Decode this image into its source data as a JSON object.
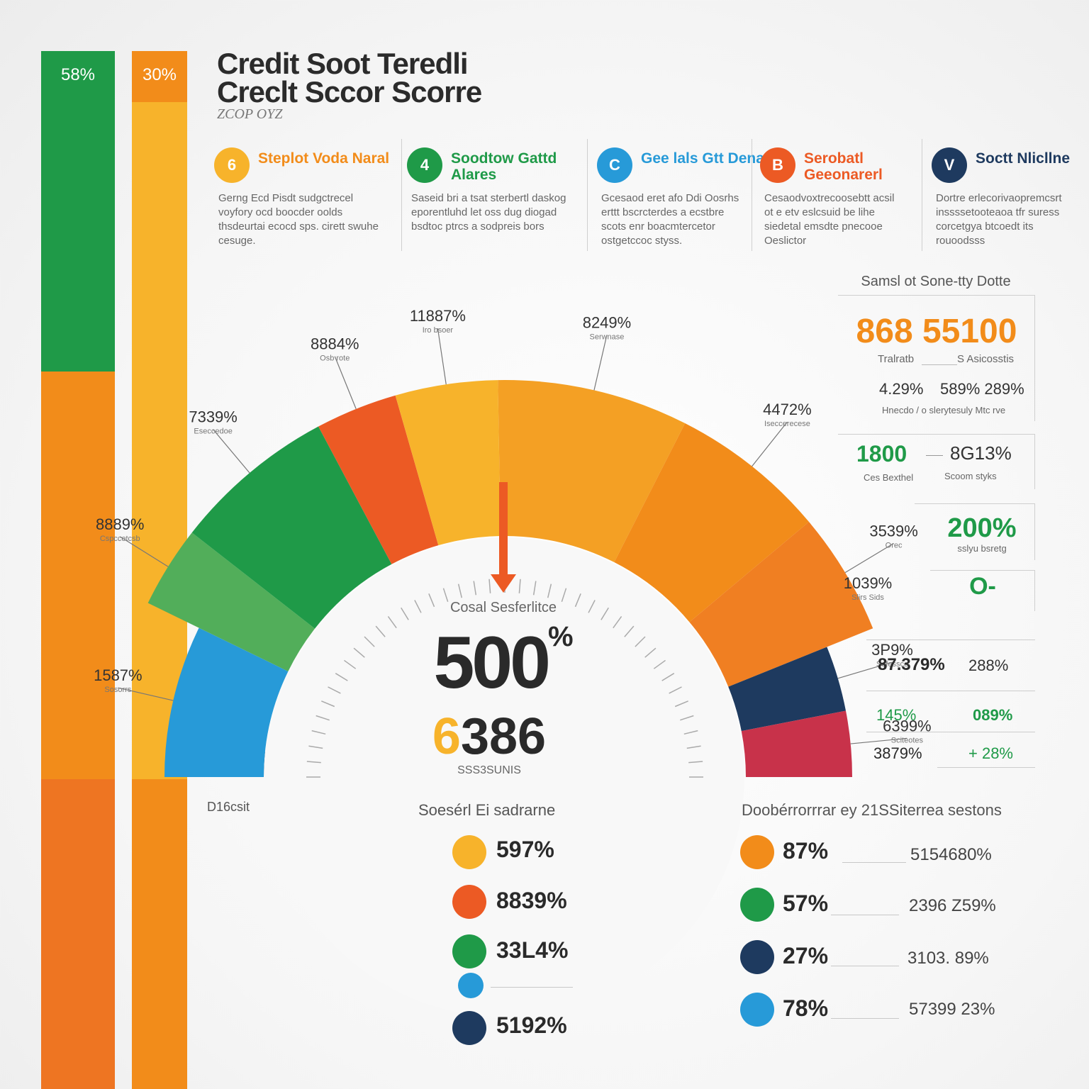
{
  "colors": {
    "green": "#1f9a48",
    "orange": "#f28c1a",
    "yellow": "#f7b32b",
    "red_orange": "#ec5a24",
    "blue": "#279ad8",
    "navy": "#1e3a5f",
    "crimson": "#c8324a",
    "light_green": "#52ae5a"
  },
  "bars": {
    "left_label": "58%",
    "right_label": "30%"
  },
  "title": {
    "line1": "Credit Soot Teredli",
    "line2": "Creclt Sccor Scorre",
    "sub": "ZCOP OYZ"
  },
  "cards": [
    {
      "badge": "6",
      "title": "Steplot Voda Naral",
      "desc": "Gerng Ecd Pisdt sudgctrecel voyfory ocd boocder oolds thsdeurtai ecocd sps. cirett swuhe cesuge.",
      "icon": "circle-6-icon"
    },
    {
      "badge": "4",
      "title": "Soodtow Gattd Alares",
      "desc": "Saseid bri a tsat sterbertl daskog eporentluhd let oss dug diogad bsdtoc ptrcs a sodpreis bors",
      "icon": "circle-4-icon"
    },
    {
      "badge": "C",
      "title": "Gee lals Gtt Dena",
      "desc": "Gcesaod eret afo Ddi Oosrhs erttt bscrcterdes a ecstbre scots enr boacmtercetor ostgetccoc styss.",
      "icon": "circle-c-icon"
    },
    {
      "badge": "B",
      "title": "Serobatl Geeonarerl",
      "desc": "Cesaodvoxtrecoosebtt acsil ot e etv eslcsuid be lihe siedetal emsdte pnecooe Oeslictor",
      "icon": "circle-b-icon"
    },
    {
      "badge": "V",
      "title": "Soctt Nlicllne",
      "desc": "Dortre erlecorivaopremcsrt inssssetooteaoa tfr suress corcetgya btcoedt its rouoodsss",
      "icon": "circle-check-icon"
    }
  ],
  "gauge": {
    "center_label": "Cosal Sesferlitce",
    "value": "500",
    "value_suffix": "%",
    "sub_value_accent": "6",
    "sub_value_rest": "386",
    "sub_caption": "SSS3SUNIS"
  },
  "chart_data": {
    "type": "gauge",
    "segments": [
      {
        "label": "1587%",
        "caption": "Sosorrs",
        "color": "#279ad8",
        "sweep": 26
      },
      {
        "label": "8889%",
        "caption": "Cspccetcsb",
        "color": "#52ae5a",
        "sweep": 12
      },
      {
        "label": "7339%",
        "caption": "Eseccedoe",
        "color": "#1f9a48",
        "sweep": 24
      },
      {
        "label": "8884%",
        "caption": "Osb rote",
        "color": "#ec5a24",
        "sweep": 12
      },
      {
        "label": "11887%",
        "caption": "Iro bsoer",
        "color": "#f7b32b",
        "sweep": 15
      },
      {
        "label": "8249%",
        "caption": "Serwnase",
        "color": "#f4a024",
        "sweep": 28
      },
      {
        "label": "4472%",
        "caption": "Iseccerecese",
        "color": "#f28c1a",
        "sweep": 23
      },
      {
        "label": "3539%",
        "caption": "Orec",
        "color": "#f07f22",
        "sweep": 18
      },
      {
        "label": "3P9%",
        "caption": "Sofessce",
        "color": "#1e3a5f",
        "sweep": 11
      },
      {
        "label": "6399%",
        "caption": "Sciteotes",
        "color": "#c8324a",
        "sweep": 11
      }
    ],
    "extra_labels": [
      {
        "label": "1039%",
        "caption": "Slirs Sids"
      }
    ],
    "left_caption": "D16csit"
  },
  "panel": {
    "title": "Samsl ot Sone-tty Dotte",
    "main_value": "868 55100",
    "row1_left": "Tralratb",
    "row1_right": "S Asicosstis",
    "row2_left": "4.29%",
    "row2_right": "589% 289%",
    "row2_caption": "Hnecdo / o slerytesuly Mtc rve",
    "box2_value": "1800",
    "box2_value_right": "8G13%",
    "box2_cap_left": "Ces Bexthel",
    "box2_cap_right": "Scoom styks",
    "box3_value": "200%",
    "box3_caption": "sslyu bsretg",
    "box4_value": "O-",
    "table": [
      {
        "left": "87.379%",
        "right": "288%"
      },
      {
        "left": "145%",
        "right": "089%"
      },
      {
        "left": "3879%",
        "right": "+ 28%"
      }
    ]
  },
  "legend_left": {
    "title": "Soesérl Ei sadrarne",
    "items": [
      {
        "value": "597%",
        "color": "#f7b32b"
      },
      {
        "value": "8839%",
        "color": "#ec5a24"
      },
      {
        "value": "33L4%",
        "color": "#1f9a48"
      },
      {
        "value": "",
        "color": "#279ad8"
      },
      {
        "value": "5192%",
        "color": "#1e3a5f"
      }
    ]
  },
  "legend_right": {
    "title": "Doobérrorrrar ey 21SSiterrea sestons",
    "items": [
      {
        "value": "87%",
        "value2": "5154680%",
        "color": "#f28c1a"
      },
      {
        "value": "57%",
        "value2": "2396 Z59%",
        "color": "#1f9a48"
      },
      {
        "value": "27%",
        "value2": "3103. 89%",
        "color": "#1e3a5f"
      },
      {
        "value": "78%",
        "value2": "57399 23%",
        "color": "#279ad8"
      }
    ]
  }
}
